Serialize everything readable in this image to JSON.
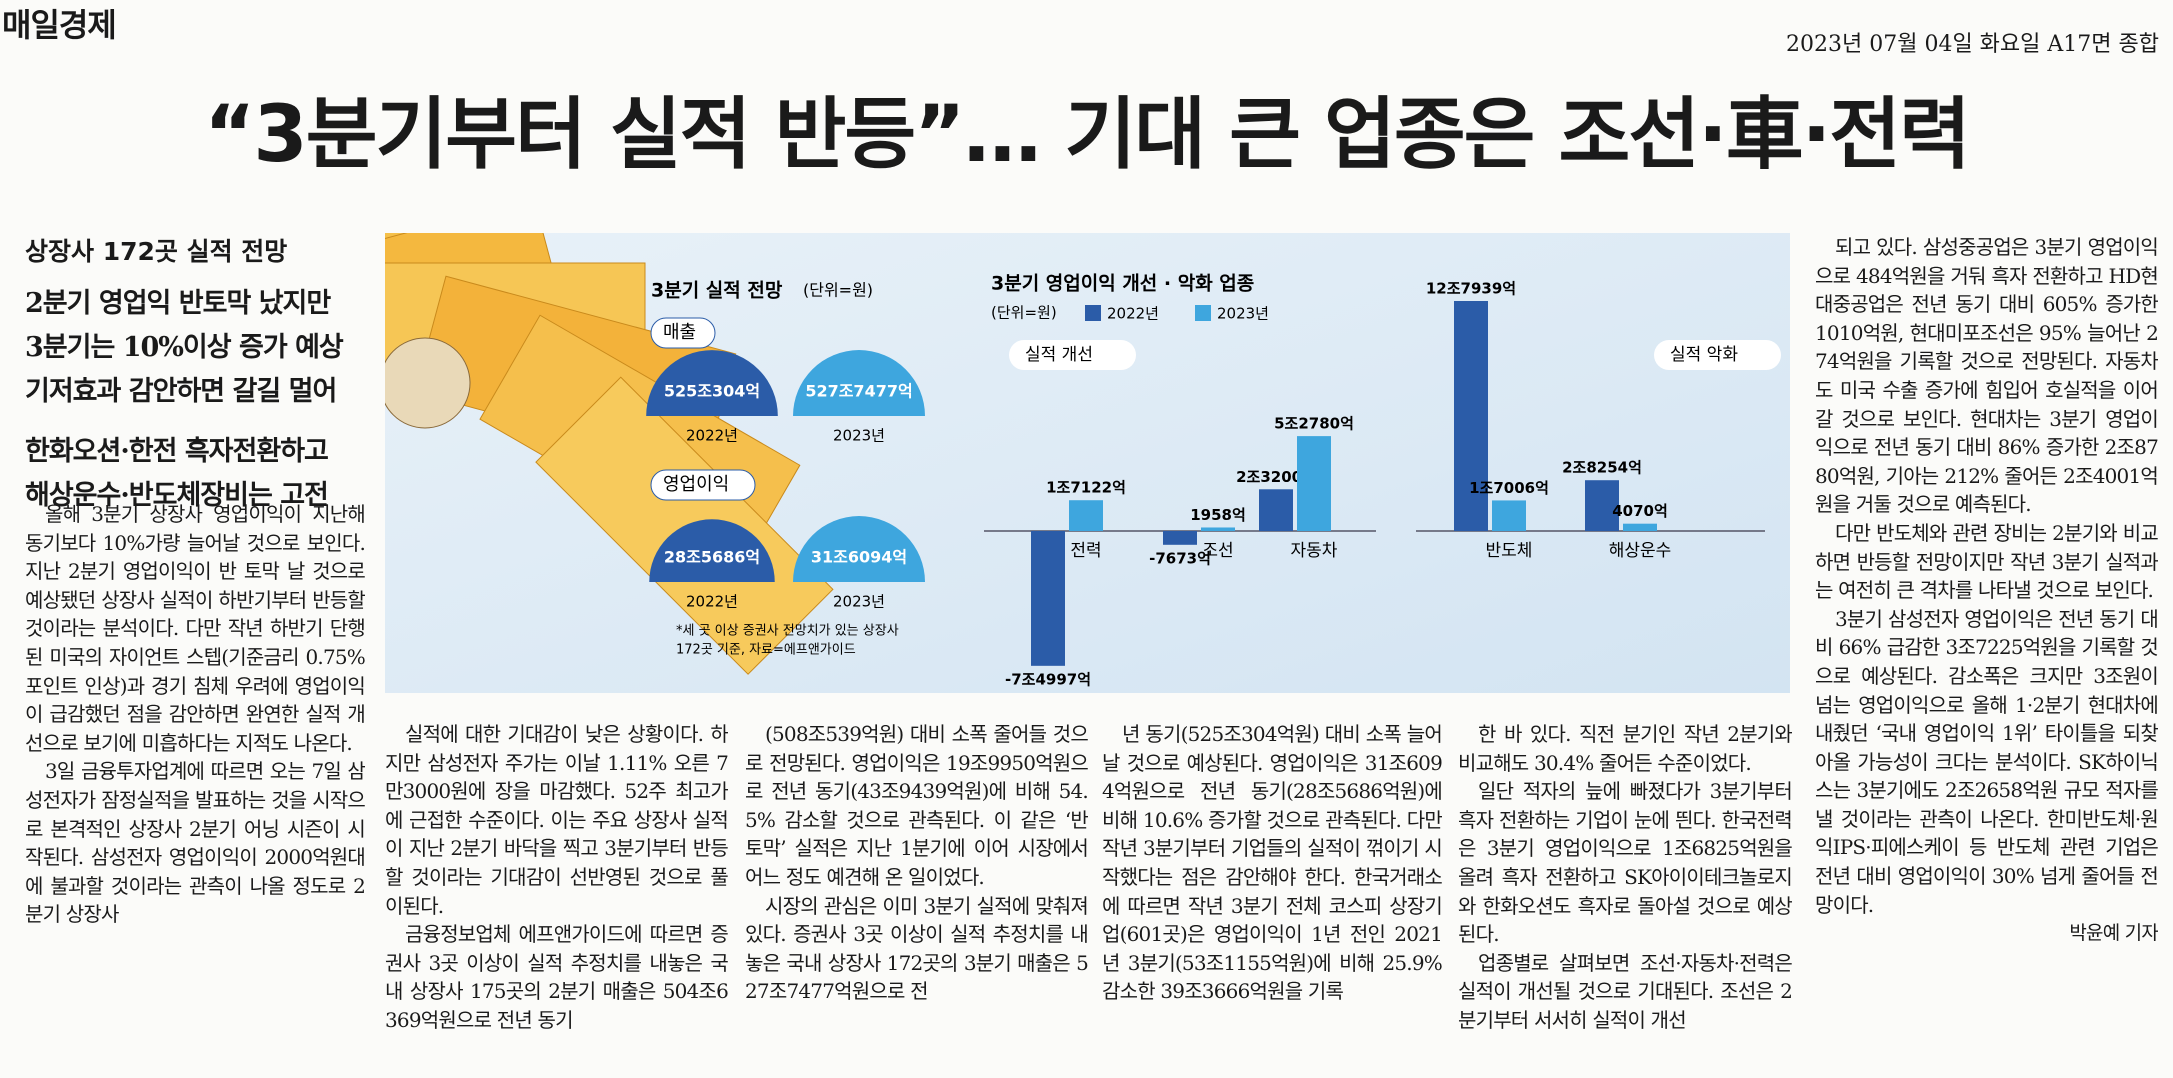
{
  "header": {
    "masthead": "매일경제",
    "dateline": "2023년 07월 04일 화요일 A17면 종합"
  },
  "headline": "“3분기부터 실적 반등”… 기대 큰 업종은 조선·車·전력",
  "subheads": {
    "kicker": "상장사 172곳 실적 전망",
    "groups": [
      [
        "2분기 영업익 반토막 났지만",
        "3분기는 10%이상 증가 예상",
        "기저효과 감안하면 갈길 멀어"
      ],
      [
        "한화오션·한전 흑자전환하고",
        "해상운수·반도체장비는 고전"
      ]
    ]
  },
  "infographic": {
    "forecast": {
      "title": "3분기 실적 전망",
      "unit": "(단위=원)",
      "colors": [
        "#2b5ca8",
        "#3ea6de"
      ],
      "panels": [
        {
          "label": "매출",
          "items": [
            {
              "year": "2022년",
              "value": 5250304,
              "label": "525조304억"
            },
            {
              "year": "2023년",
              "value": 5277477,
              "label": "527조7477억"
            }
          ]
        },
        {
          "label": "영업이익",
          "items": [
            {
              "year": "2022년",
              "value": 285686,
              "label": "28조5686억"
            },
            {
              "year": "2023년",
              "value": 316094,
              "label": "31조6094억"
            }
          ]
        }
      ],
      "note": [
        "*세 곳 이상 증권사 전망치가 있는 상장사",
        "172곳 기준, 자료=에프앤가이드"
      ]
    }
  },
  "chart_data": {
    "type": "bar",
    "title": "3분기 영업이익 개선 · 악화 업종",
    "unit": "(단위=원)",
    "group_labels": [
      "실적 개선",
      "실적 악화"
    ],
    "categories": [
      "전력",
      "조선",
      "자동차",
      "반도체",
      "해상운수"
    ],
    "series": [
      {
        "name": "2022년",
        "color": "#2b5ca8",
        "values": [
          -74997,
          -7673,
          23200,
          127939,
          28254
        ],
        "value_labels": [
          "-7조4997억",
          "-7673억",
          "2조3200억",
          "12조7939억",
          "2조8254억"
        ]
      },
      {
        "name": "2023년",
        "color": "#3ea6de",
        "values": [
          17122,
          1958,
          52780,
          17006,
          4070
        ],
        "value_labels": [
          "1조7122억",
          "1958억",
          "5조2780억",
          "1조7006억",
          "4070억"
        ]
      }
    ]
  },
  "body": {
    "columns": [
      [
        "올해 3분기 상장사 영업이익이 지난해 동기보다 10%가량 늘어날 것으로 보인다. 지난 2분기 영업이익이 반 토막 날 것으로 예상됐던 상장사 실적이 하반기부터 반등할 것이라는 분석이다. 다만 작년 하반기 단행된 미국의 자이언트 스텝(기준금리 0.75%포인트 인상)과 경기 침체 우려에 영업이익이 급감했던 점을 감안하면 완연한 실적 개선으로 보기에 미흡하다는 지적도 나온다.",
        "3일 금융투자업계에 따르면 오는 7일 삼성전자가 잠정실적을 발표하는 것을 시작으로 본격적인 상장사 2분기 어닝 시즌이 시작된다. 삼성전자 영업이익이 2000억원대에 불과할 것이라는 관측이 나올 정도로 2분기 상장사"
      ],
      [
        "실적에 대한 기대감이 낮은 상황이다. 하지만 삼성전자 주가는 이날 1.11% 오른 7만3000원에 장을 마감했다. 52주 최고가에 근접한 수준이다. 이는 주요 상장사 실적이 지난 2분기 바닥을 찍고 3분기부터 반등할 것이라는 기대감이 선반영된 것으로 풀이된다.",
        "금융정보업체 에프앤가이드에 따르면 증권사 3곳 이상이 실적 추정치를 내놓은 국내 상장사 175곳의 2분기 매출은 504조6369억원으로 전년 동기"
      ],
      [
        "(508조539억원) 대비 소폭 줄어들 것으로 전망된다. 영업이익은 19조9950억원으로 전년 동기(43조9439억원)에 비해 54.5% 감소할 것으로 관측된다. 이 같은 ‘반 토막’ 실적은 지난 1분기에 이어 시장에서 어느 정도 예견해 온 일이었다.",
        "시장의 관심은 이미 3분기 실적에 맞춰져 있다. 증권사 3곳 이상이 실적 추정치를 내놓은 국내 상장사 172곳의 3분기 매출은 527조7477억원으로 전"
      ],
      [
        "년 동기(525조304억원) 대비 소폭 늘어날 것으로 예상된다. 영업이익은 31조6094억원으로 전년 동기(28조5686억원)에 비해 10.6% 증가할 것으로 관측된다. 다만 작년 3분기부터 기업들의 실적이 꺾이기 시작했다는 점은 감안해야 한다. 한국거래소에 따르면 작년 3분기 전체 코스피 상장기업(601곳)은 영업이익이 1년 전인 2021년 3분기(53조1155억원)에 비해 25.9% 감소한 39조3666억원을 기록"
      ],
      [
        "한 바 있다. 직전 분기인 작년 2분기와 비교해도 30.4% 줄어든 수준이었다.",
        "일단 적자의 늪에 빠졌다가 3분기부터 흑자 전환하는 기업이 눈에 띈다. 한국전력은 3분기 영업이익으로 1조6825억원을 올려 흑자 전환하고 SK아이이테크놀로지와 한화오션도 흑자로 돌아설 것으로 예상된다.",
        "업종별로 살펴보면 조선·자동차·전력은 실적이 개선될 것으로 기대된다. 조선은 2분기부터 서서히 실적이 개선"
      ],
      [
        "되고 있다. 삼성중공업은 3분기 영업이익으로 484억원을 거둬 흑자 전환하고 HD현대중공업은 전년 동기 대비 605% 증가한 1010억원, 현대미포조선은 95% 늘어난 274억원을 기록할 것으로 전망된다. 자동차도 미국 수출 증가에 힘입어 호실적을 이어갈 것으로 보인다. 현대차는 3분기 영업이익으로 전년 동기 대비 86% 증가한 2조8780억원, 기아는 212% 줄어든 2조4001억원을 거둘 것으로 예측된다.",
        "다만 반도체와 관련 장비는 2분기와 비교하면 반등할 전망이지만 작년 3분기 실적과는 여전히 큰 격차를 나타낼 것으로 보인다.",
        "3분기 삼성전자 영업이익은 전년 동기 대비 66% 급감한 3조7225억원을 기록할 것으로 예상된다. 감소폭은 크지만 3조원이 넘는 영업이익으로 올해 1·2분기 현대차에 내줬던 ‘국내 영업이익 1위’ 타이틀을 되찾아올 가능성이 크다는 분석이다. SK하이닉스는 3분기에도 2조2658억원 규모 적자를 낼 것이라는 관측이 나온다. 한미반도체·원익IPS·피에스케이 등 반도체 관련 기업은 전년 대비 영업이익이 30% 넘게 줄어들 전망이다."
      ]
    ],
    "byline": "박윤예 기자"
  }
}
